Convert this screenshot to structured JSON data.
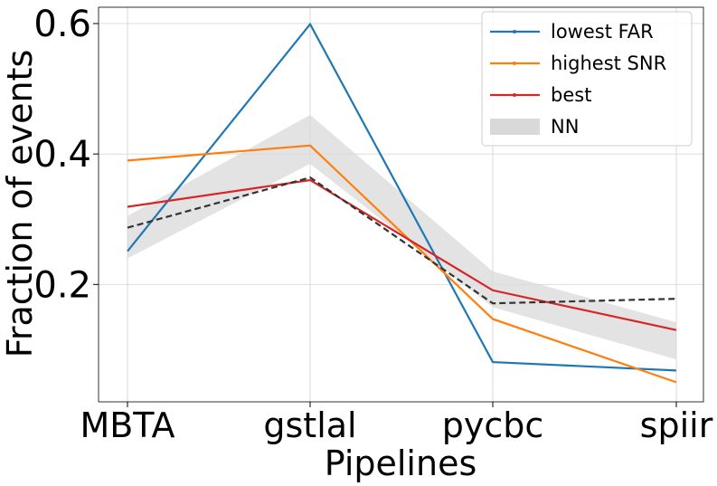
{
  "chart_data": {
    "type": "line",
    "title": "",
    "xlabel": "Pipelines",
    "ylabel": "Fraction of events",
    "categories": [
      "MBTA",
      "gstlal",
      "pycbc",
      "spiir"
    ],
    "ylim": [
      0.02,
      0.625
    ],
    "yticks": [
      0.2,
      0.4,
      0.6
    ],
    "ytick_labels": [
      "0.2",
      "0.4",
      "0.6"
    ],
    "grid": true,
    "legend_position": "top-right",
    "series": [
      {
        "name": "lowest FAR",
        "color": "#1f77b4",
        "values": [
          0.251,
          0.599,
          0.081,
          0.068
        ]
      },
      {
        "name": "highest SNR",
        "color": "#ff7f0e",
        "values": [
          0.39,
          0.413,
          0.147,
          0.05
        ]
      },
      {
        "name": "best",
        "color": "#d62728",
        "values": [
          0.319,
          0.36,
          0.191,
          0.13
        ]
      }
    ],
    "nn_band": {
      "name": "NN",
      "color": "#d9d9d9",
      "upper": [
        0.305,
        0.46,
        0.22,
        0.142
      ],
      "lower": [
        0.24,
        0.385,
        0.165,
        0.085
      ],
      "median": [
        0.287,
        0.364,
        0.171,
        0.178
      ],
      "median_color": "#333333"
    }
  }
}
